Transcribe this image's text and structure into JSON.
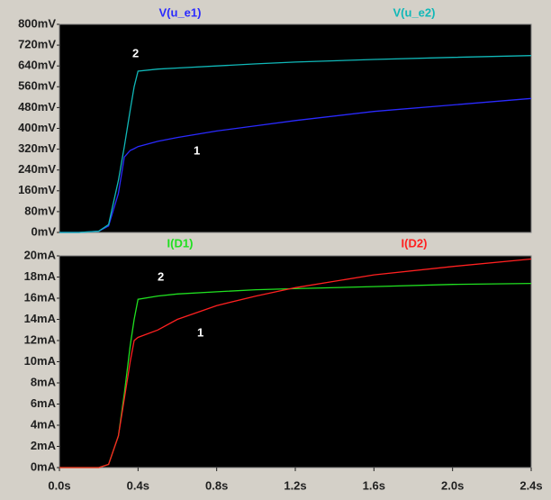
{
  "chart_data": [
    {
      "type": "line",
      "x": [
        0,
        0.1,
        0.2,
        0.25,
        0.3,
        0.33,
        0.36,
        0.38,
        0.4,
        0.5,
        0.6,
        0.8,
        1.0,
        1.2,
        1.6,
        2.0,
        2.4
      ],
      "xlim": [
        0,
        2.4
      ],
      "ylim": [
        0,
        800
      ],
      "yticks": [
        {
          "value": 0,
          "label": "0mV"
        },
        {
          "value": 80,
          "label": "80mV"
        },
        {
          "value": 160,
          "label": "160mV"
        },
        {
          "value": 240,
          "label": "240mV"
        },
        {
          "value": 320,
          "label": "320mV"
        },
        {
          "value": 400,
          "label": "400mV"
        },
        {
          "value": 480,
          "label": "480mV"
        },
        {
          "value": 560,
          "label": "560mV"
        },
        {
          "value": 640,
          "label": "640mV"
        },
        {
          "value": 720,
          "label": "720mV"
        },
        {
          "value": 800,
          "label": "800mV"
        }
      ],
      "series": [
        {
          "name": "V(u_e1)",
          "color": "#2a2aff",
          "values": [
            0,
            0,
            5,
            25,
            150,
            290,
            315,
            322,
            330,
            350,
            365,
            390,
            410,
            430,
            465,
            490,
            515
          ]
        },
        {
          "name": "V(u_e2)",
          "color": "#10b8b8",
          "values": [
            0,
            0,
            5,
            30,
            200,
            330,
            470,
            560,
            620,
            628,
            632,
            640,
            648,
            655,
            665,
            673,
            680
          ]
        }
      ],
      "annotations": [
        "2",
        "1"
      ]
    },
    {
      "type": "line",
      "x": [
        0,
        0.1,
        0.2,
        0.25,
        0.3,
        0.33,
        0.36,
        0.38,
        0.4,
        0.5,
        0.6,
        0.8,
        1.0,
        1.2,
        1.6,
        2.0,
        2.4
      ],
      "xlim": [
        0,
        2.4
      ],
      "xticks": [
        {
          "value": 0,
          "label": "0.0s"
        },
        {
          "value": 0.4,
          "label": "0.4s"
        },
        {
          "value": 0.8,
          "label": "0.8s"
        },
        {
          "value": 1.2,
          "label": "1.2s"
        },
        {
          "value": 1.6,
          "label": "1.6s"
        },
        {
          "value": 2.0,
          "label": "2.0s"
        },
        {
          "value": 2.4,
          "label": "2.4s"
        }
      ],
      "ylim": [
        0,
        20
      ],
      "yticks": [
        {
          "value": 0,
          "label": "0mA"
        },
        {
          "value": 2,
          "label": "2mA"
        },
        {
          "value": 4,
          "label": "4mA"
        },
        {
          "value": 6,
          "label": "6mA"
        },
        {
          "value": 8,
          "label": "8mA"
        },
        {
          "value": 10,
          "label": "10mA"
        },
        {
          "value": 12,
          "label": "12mA"
        },
        {
          "value": 14,
          "label": "14mA"
        },
        {
          "value": 16,
          "label": "16mA"
        },
        {
          "value": 18,
          "label": "18mA"
        },
        {
          "value": 20,
          "label": "20mA"
        }
      ],
      "series": [
        {
          "name": "I(D1)",
          "color": "#20e020",
          "values": [
            0,
            0,
            0,
            0.3,
            3,
            7,
            11.5,
            14,
            15.9,
            16.2,
            16.4,
            16.6,
            16.8,
            16.9,
            17.1,
            17.3,
            17.4
          ]
        },
        {
          "name": "I(D2)",
          "color": "#ff2020",
          "values": [
            0,
            0,
            0,
            0.3,
            3,
            6.5,
            10,
            12,
            12.3,
            13,
            14,
            15.3,
            16.2,
            17,
            18.2,
            19,
            19.7
          ]
        }
      ],
      "annotations": [
        "2",
        "1"
      ]
    }
  ]
}
